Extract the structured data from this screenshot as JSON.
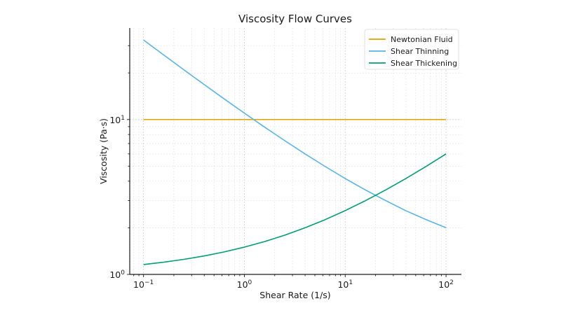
{
  "chart_data": {
    "type": "line",
    "title": "Viscosity Flow Curves",
    "xlabel": "Shear Rate (1/s)",
    "ylabel": "Viscosity (Pa·s)",
    "xscale": "log",
    "yscale": "log",
    "xlim": [
      0.073,
      142
    ],
    "ylim": [
      1.0,
      39
    ],
    "grid": true,
    "x_ticks": [
      {
        "value": 0.1,
        "base": "10",
        "exp": "−1"
      },
      {
        "value": 1,
        "base": "10",
        "exp": "0"
      },
      {
        "value": 10,
        "base": "10",
        "exp": "1"
      },
      {
        "value": 100,
        "base": "10",
        "exp": "2"
      }
    ],
    "y_ticks": [
      {
        "value": 1,
        "base": "10",
        "exp": "0"
      },
      {
        "value": 10,
        "base": "10",
        "exp": "1"
      }
    ],
    "legend": {
      "position": "top-right",
      "entries": [
        "Newtonian Fluid",
        "Shear Thinning",
        "Shear Thickening"
      ]
    },
    "x": [
      0.1,
      0.1585,
      0.2512,
      0.3981,
      0.631,
      1,
      1.585,
      2.512,
      3.981,
      6.31,
      10,
      15.85,
      25.12,
      39.81,
      63.1,
      100
    ],
    "series": [
      {
        "name": "Newtonian Fluid",
        "color": "#E69F00",
        "values": [
          10,
          10,
          10,
          10,
          10,
          10,
          10,
          10,
          10,
          10,
          10,
          10,
          10,
          10,
          10,
          10
        ]
      },
      {
        "name": "Shear Thinning",
        "color": "#56B4E9",
        "values": [
          32.62,
          26.12,
          20.95,
          16.85,
          13.59,
          11.0,
          8.94,
          7.31,
          6.01,
          4.98,
          4.16,
          3.51,
          3.0,
          2.58,
          2.26,
          2.0
        ]
      },
      {
        "name": "Shear Thickening",
        "color": "#009E73",
        "values": [
          1.158,
          1.199,
          1.251,
          1.315,
          1.397,
          1.5,
          1.629,
          1.792,
          1.998,
          2.256,
          2.581,
          2.991,
          3.506,
          4.155,
          4.972,
          6.0
        ]
      }
    ]
  }
}
